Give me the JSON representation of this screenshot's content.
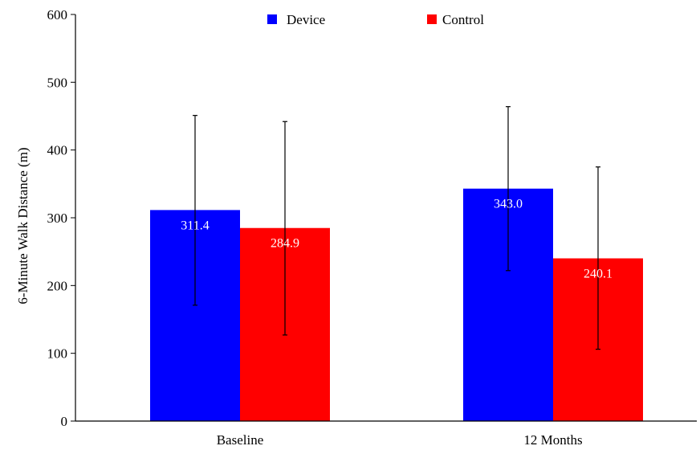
{
  "chart_data": {
    "type": "bar",
    "title": "",
    "xlabel": "",
    "ylabel": "6-Minute Walk Distance (m)",
    "ylim": [
      0,
      600
    ],
    "yticks": [
      0,
      100,
      200,
      300,
      400,
      500,
      600
    ],
    "categories": [
      "Baseline",
      "12 Months"
    ],
    "series": [
      {
        "name": "Device",
        "color": "#0000ff",
        "values": [
          311.4,
          343.0
        ],
        "labels": [
          "311.4",
          "343.0"
        ],
        "error_low": [
          171,
          222
        ],
        "error_high": [
          451,
          464
        ]
      },
      {
        "name": "Control",
        "color": "#ff0000",
        "values": [
          284.9,
          240.1
        ],
        "labels": [
          "284.9",
          "240.1"
        ],
        "error_low": [
          127,
          106
        ],
        "error_high": [
          442,
          375
        ]
      }
    ],
    "legend_position": "top-center",
    "grid": false
  }
}
